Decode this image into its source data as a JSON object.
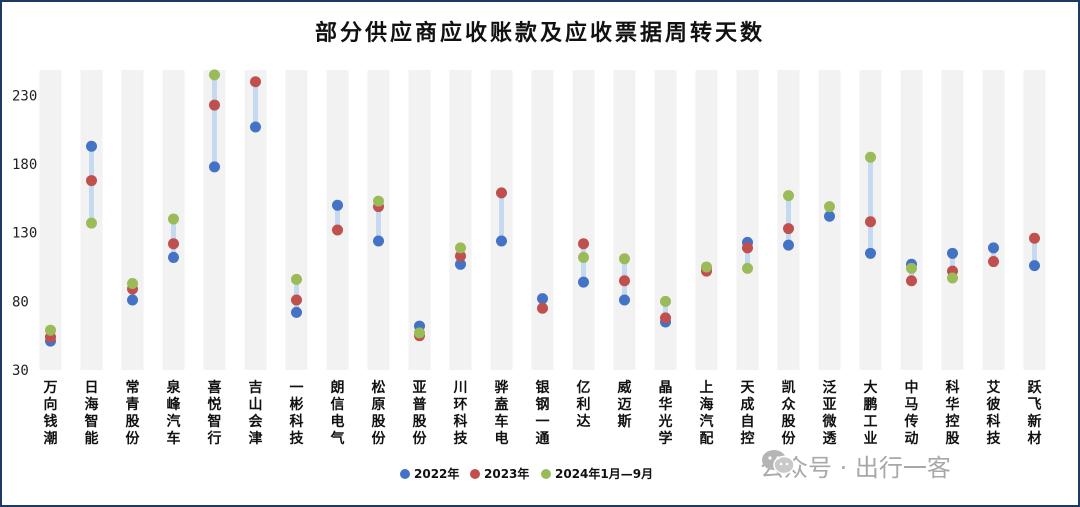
{
  "chart_data": {
    "type": "scatter",
    "title": "部分供应商应收账款及应收票据周转天数",
    "ylim": [
      30,
      250
    ],
    "yticks": [
      30,
      80,
      130,
      180,
      230
    ],
    "categories": [
      "万向钱潮",
      "日海智能",
      "常青股份",
      "泉峰汽车",
      "喜悦智行",
      "吉山会津",
      "一彬科技",
      "朗信电气",
      "松原股份",
      "亚普股份",
      "川环科技",
      "骅盍车电",
      "银钢一通",
      "亿利达",
      "威迈斯",
      "晶华光学",
      "上海汽配",
      "天成自控",
      "凯众股份",
      "泛亚微透",
      "大鹏工业",
      "中马传动",
      "科华控股",
      "艾彼科技",
      "跃飞新材"
    ],
    "series": [
      {
        "name": "2022年",
        "color": "#4472c4",
        "values": [
          51,
          193,
          81,
          112,
          178,
          207,
          72,
          150,
          124,
          62,
          107,
          124,
          82,
          94,
          81,
          65,
          104,
          123,
          121,
          142,
          115,
          107,
          115,
          119,
          106
        ]
      },
      {
        "name": "2023年",
        "color": "#c0504d",
        "values": [
          54,
          168,
          89,
          122,
          223,
          240,
          81,
          132,
          149,
          55,
          113,
          159,
          75,
          122,
          95,
          68,
          102,
          119,
          133,
          null,
          138,
          95,
          102,
          109,
          126
        ]
      },
      {
        "name": "2024年1月—9月",
        "color": "#9bbb59",
        "values": [
          59,
          137,
          93,
          140,
          245,
          null,
          96,
          null,
          153,
          57,
          119,
          null,
          null,
          112,
          111,
          80,
          105,
          104,
          157,
          149,
          185,
          104,
          97,
          null,
          null
        ]
      }
    ],
    "grid": false,
    "legend_position": "bottom"
  },
  "watermark": {
    "text": "公众号 · 出行一客",
    "icon": "wechat-icon"
  }
}
